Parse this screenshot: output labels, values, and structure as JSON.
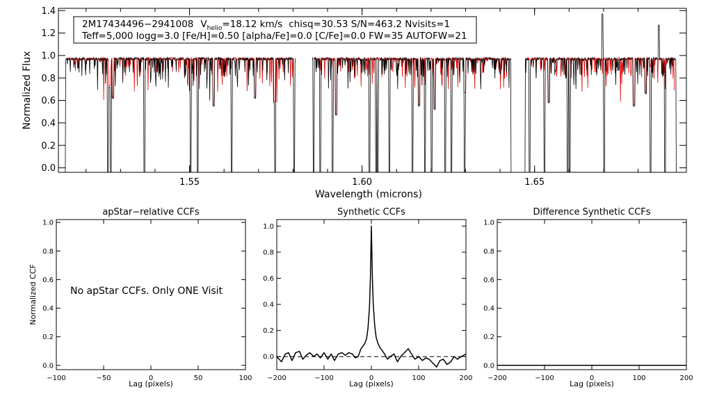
{
  "chart_data": [
    {
      "id": "spectrum",
      "type": "line",
      "xlabel": "Wavelength (microns)",
      "ylabel": "Normalized Flux",
      "xlim": [
        1.512,
        1.694
      ],
      "ylim": [
        -0.04,
        1.42
      ],
      "xticks": [
        1.55,
        1.6,
        1.65
      ],
      "xtick_labels": [
        "1.55",
        "1.60",
        "1.65"
      ],
      "yticks": [
        0.0,
        0.2,
        0.4,
        0.6,
        0.8,
        1.0,
        1.2,
        1.4
      ],
      "ytick_labels": [
        "0.0",
        "0.2",
        "0.4",
        "0.6",
        "0.8",
        "1.0",
        "1.2",
        "1.4"
      ],
      "info_box": {
        "star_id": "2M17434496−2941008",
        "v_symbol": "V",
        "v_subscript": "helio",
        "v_value": "=18.12 km/s",
        "line1_rest": "chisq=30.53  S/N=463.2  Nvisits=1",
        "line2": "Teff=5,000 logg=3.0 [Fe/H]=0.50 [alpha/Fe]=0.0 [C/Fe]=0.0 FW=35 AUTOFW=21"
      },
      "chips": [
        [
          1.514,
          1.5808
        ],
        [
          1.5856,
          1.6433
        ],
        [
          1.6471,
          1.6913
        ]
      ],
      "continuum": 0.97,
      "series": [
        {
          "name": "observed",
          "color": "#000000"
        },
        {
          "name": "model",
          "color": "#e00000"
        }
      ],
      "dropouts": [
        1.5139,
        1.5264,
        1.5272,
        1.5369,
        1.5503,
        1.5524,
        1.5622,
        1.5748,
        1.5803,
        1.5859,
        1.5879,
        1.5915,
        1.6022,
        1.6041,
        1.6045,
        1.6079,
        1.6146,
        1.6182,
        1.6201,
        1.6241,
        1.6259,
        1.6298,
        1.6433,
        1.6471,
        1.6485,
        1.6529,
        1.6596,
        1.6602,
        1.6702,
        1.6836,
        1.6878,
        1.6912
      ],
      "spikes": [
        [
          1.6697,
          1.37
        ],
        [
          1.686,
          1.27
        ]
      ],
      "deep_lines": [
        [
          1.5278,
          0.62
        ],
        [
          1.5268,
          0.72
        ],
        [
          1.557,
          0.55
        ],
        [
          1.569,
          0.62
        ],
        [
          1.5746,
          0.58
        ],
        [
          1.5925,
          0.47
        ],
        [
          1.6165,
          0.55
        ],
        [
          1.621,
          0.52
        ],
        [
          1.6298,
          0.66
        ],
        [
          1.6541,
          0.58
        ],
        [
          1.6788,
          0.55
        ],
        [
          1.6822,
          0.66
        ]
      ]
    },
    {
      "id": "apstar-ccf",
      "type": "line",
      "title": "apStar−relative CCFs",
      "ylabel": "Normalized CCF",
      "xlabel": "Lag (pixels)",
      "xlim": [
        -100,
        100
      ],
      "ylim": [
        -0.03,
        1.02
      ],
      "xticks": [
        -100,
        -50,
        0,
        50,
        100
      ],
      "xtick_labels": [
        "−100",
        "−50",
        "0",
        "50",
        "100"
      ],
      "yticks": [
        0.0,
        0.2,
        0.4,
        0.6,
        0.8,
        1.0
      ],
      "ytick_labels": [
        "0.0",
        "0.2",
        "0.4",
        "0.6",
        "0.8",
        "1.0"
      ],
      "annotation": "No apStar CCFs.  Only ONE Visit",
      "series": []
    },
    {
      "id": "synthetic-ccf",
      "type": "line",
      "title": "Synthetic CCFs",
      "xlabel": "Lag (pixels)",
      "xlim": [
        -200,
        200
      ],
      "ylim": [
        -0.1,
        1.05
      ],
      "xticks": [
        -200,
        -100,
        0,
        100,
        200
      ],
      "xtick_labels": [
        "−200",
        "−100",
        "0",
        "100",
        "200"
      ],
      "yticks": [
        0.0,
        0.2,
        0.4,
        0.6,
        0.8,
        1.0
      ],
      "ytick_labels": [
        "0.0",
        "0.2",
        "0.4",
        "0.6",
        "0.8",
        "1.0"
      ],
      "zero_line": {
        "y": 0.0,
        "style": "dashed"
      },
      "series": [
        {
          "name": "synthetic CCF",
          "color": "#000000",
          "x": [
            -200,
            -190,
            -182,
            -175,
            -168,
            -160,
            -152,
            -145,
            -138,
            -130,
            -122,
            -115,
            -108,
            -100,
            -92,
            -85,
            -78,
            -70,
            -62,
            -55,
            -48,
            -40,
            -34,
            -28,
            -22,
            -18,
            -14,
            -10,
            -7,
            -4,
            -2,
            0,
            2,
            4,
            7,
            10,
            14,
            18,
            22,
            28,
            34,
            40,
            48,
            55,
            62,
            70,
            78,
            85,
            92,
            100,
            108,
            115,
            122,
            130,
            138,
            145,
            152,
            160,
            168,
            175,
            182,
            190,
            200
          ],
          "y": [
            0.0,
            -0.04,
            0.02,
            0.03,
            -0.03,
            0.03,
            0.04,
            -0.02,
            0.01,
            0.03,
            0.0,
            0.02,
            -0.01,
            0.03,
            -0.02,
            0.02,
            -0.03,
            0.02,
            0.03,
            0.01,
            0.03,
            0.02,
            -0.01,
            0.0,
            0.06,
            0.08,
            0.1,
            0.14,
            0.22,
            0.38,
            0.6,
            1.0,
            0.62,
            0.4,
            0.24,
            0.15,
            0.1,
            0.07,
            0.05,
            0.02,
            -0.02,
            0.0,
            0.02,
            -0.04,
            0.0,
            0.03,
            0.06,
            0.02,
            -0.02,
            0.0,
            -0.03,
            -0.01,
            -0.02,
            -0.05,
            -0.08,
            -0.03,
            -0.02,
            -0.06,
            -0.04,
            0.0,
            -0.02,
            0.0,
            0.02
          ]
        }
      ]
    },
    {
      "id": "difference-ccf",
      "type": "line",
      "title": "Difference Synthetic CCFs",
      "xlabel": "Lag (pixels)",
      "xlim": [
        -200,
        200
      ],
      "ylim": [
        -0.03,
        1.02
      ],
      "xticks": [
        -200,
        -100,
        0,
        100,
        200
      ],
      "xtick_labels": [
        "−200",
        "−100",
        "0",
        "100",
        "200"
      ],
      "yticks": [
        0.0,
        0.2,
        0.4,
        0.6,
        0.8,
        1.0
      ],
      "ytick_labels": [
        "0.0",
        "0.2",
        "0.4",
        "0.6",
        "0.8",
        "1.0"
      ],
      "series": [
        {
          "name": "difference",
          "color": "#000000",
          "x": [
            -200,
            200
          ],
          "y": [
            0.0,
            0.0
          ]
        }
      ]
    }
  ]
}
